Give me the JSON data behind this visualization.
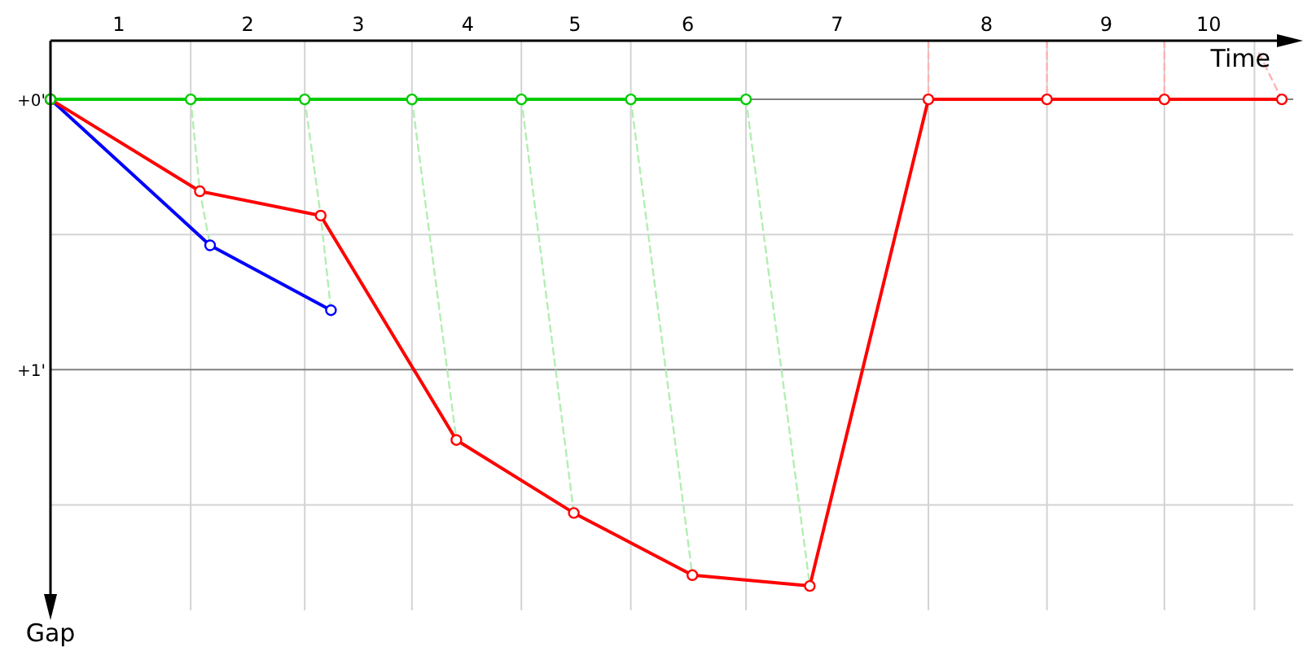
{
  "chart_data": {
    "type": "line",
    "xlabel": "Time",
    "ylabel": "Gap",
    "marker": "circle",
    "grid": true,
    "xlim": [
      0,
      10.9
    ],
    "ylim": [
      1.89,
      -0.217
    ],
    "xticks": [
      {
        "value": 0.6,
        "label": "1"
      },
      {
        "value": 1.23,
        "label": null
      },
      {
        "value": 1.73,
        "label": "2"
      },
      {
        "value": 2.23,
        "label": null
      },
      {
        "value": 2.7,
        "label": "3"
      },
      {
        "value": 3.17,
        "label": null
      },
      {
        "value": 3.66,
        "label": "4"
      },
      {
        "value": 4.13,
        "label": null
      },
      {
        "value": 4.6,
        "label": "5"
      },
      {
        "value": 5.09,
        "label": null
      },
      {
        "value": 5.59,
        "label": "6"
      },
      {
        "value": 6.1,
        "label": null
      },
      {
        "value": 6.9,
        "label": "7"
      },
      {
        "value": 7.7,
        "label": null
      },
      {
        "value": 8.21,
        "label": "8"
      },
      {
        "value": 8.74,
        "label": null
      },
      {
        "value": 9.26,
        "label": "9"
      },
      {
        "value": 9.77,
        "label": null
      },
      {
        "value": 10.16,
        "label": "10"
      },
      {
        "value": 10.56,
        "label": null
      }
    ],
    "yticks": [
      {
        "value": 0,
        "label": "+0'"
      },
      {
        "value": 0.5,
        "label": null
      },
      {
        "value": 1,
        "label": "+1'"
      },
      {
        "value": 1.5,
        "label": null
      }
    ],
    "series": [
      {
        "color": "#b3eeb3",
        "marker": "none",
        "line_style": "dashed",
        "x": [
          1.23,
          1.31,
          1.4
        ],
        "values": [
          0,
          0.34,
          0.54
        ]
      },
      {
        "color": "#b3eeb3",
        "marker": "none",
        "line_style": "dashed",
        "x": [
          2.23,
          2.37,
          2.46
        ],
        "values": [
          0,
          0.43,
          0.78
        ]
      },
      {
        "color": "#b3eeb3",
        "marker": "none",
        "line_style": "dashed",
        "x": [
          3.17,
          3.56
        ],
        "values": [
          0,
          1.26
        ]
      },
      {
        "color": "#b3eeb3",
        "marker": "none",
        "line_style": "dashed",
        "x": [
          4.13,
          4.59
        ],
        "values": [
          0,
          1.53
        ]
      },
      {
        "color": "#b3eeb3",
        "marker": "none",
        "line_style": "dashed",
        "x": [
          5.09,
          5.63
        ],
        "values": [
          0,
          1.76
        ]
      },
      {
        "color": "#b3eeb3",
        "marker": "none",
        "line_style": "dashed",
        "x": [
          6.1,
          6.66
        ],
        "values": [
          0,
          1.8
        ]
      },
      {
        "color": "#ffb3b3",
        "marker": "none",
        "line_style": "dashed",
        "x": [
          7.7,
          7.7
        ],
        "values": [
          -0.217,
          0
        ]
      },
      {
        "color": "#ffb3b3",
        "marker": "none",
        "line_style": "dashed",
        "x": [
          8.74,
          8.74
        ],
        "values": [
          -0.217,
          0
        ]
      },
      {
        "color": "#ffb3b3",
        "marker": "none",
        "line_style": "dashed",
        "x": [
          9.77,
          9.77
        ],
        "values": [
          -0.217,
          0
        ]
      },
      {
        "color": "#ffb3b3",
        "marker": "none",
        "line_style": "dashed",
        "x": [
          10.6,
          10.8
        ],
        "values": [
          -0.17,
          0
        ]
      },
      {
        "color": "#0000ff",
        "x": [
          0,
          1.4,
          2.46
        ],
        "values": [
          0,
          0.54,
          0.78
        ]
      },
      {
        "color": "#ff0000",
        "x": [
          0,
          1.31,
          2.37,
          3.56,
          4.59,
          5.63,
          6.66,
          7.7,
          8.74,
          9.77,
          10.8
        ],
        "values": [
          0,
          0.34,
          0.43,
          1.26,
          1.53,
          1.76,
          1.8,
          0,
          0,
          0,
          0
        ]
      },
      {
        "color": "#00cc00",
        "x": [
          0,
          1.23,
          2.23,
          3.17,
          4.13,
          5.09,
          6.1
        ],
        "values": [
          0,
          0,
          0,
          0,
          0,
          0,
          0
        ]
      }
    ]
  }
}
